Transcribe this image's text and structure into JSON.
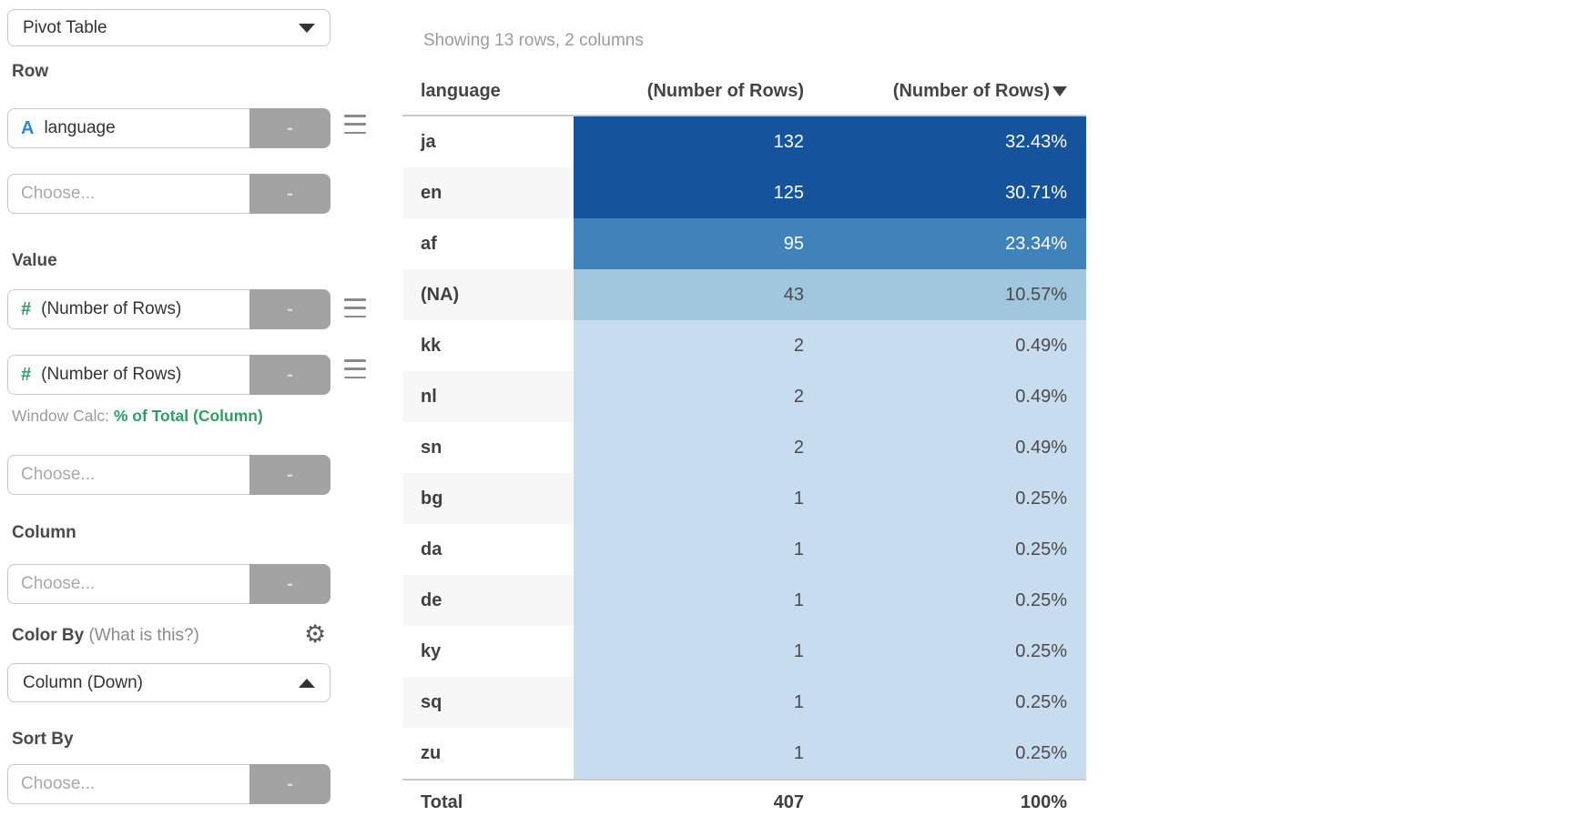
{
  "colors": {
    "accent_blue": "#2e86de",
    "accent_green": "#2f9e63",
    "cell_dark": "#15549c",
    "cell_medium": "#3f83ba",
    "cell_medium_light": "#a0c7de",
    "cell_light": "#c7dcee"
  },
  "sidebar": {
    "type_selector": {
      "value": "Pivot Table"
    },
    "row_section": {
      "label": "Row",
      "field": {
        "type_icon": "A",
        "value": "language",
        "remove_label": "-"
      },
      "empty_field": {
        "placeholder": "Choose...",
        "remove_label": "-"
      }
    },
    "value_section": {
      "label": "Value",
      "field1": {
        "type_icon": "#",
        "value": "(Number of Rows)",
        "remove_label": "-"
      },
      "field2": {
        "type_icon": "#",
        "value": "(Number of Rows)",
        "remove_label": "-",
        "window_calc_prefix": "Window Calc: ",
        "window_calc_value": "% of Total (Column)"
      },
      "empty_field": {
        "placeholder": "Choose...",
        "remove_label": "-"
      }
    },
    "column_section": {
      "label": "Column",
      "empty_field": {
        "placeholder": "Choose...",
        "remove_label": "-"
      }
    },
    "color_by_section": {
      "label": "Color By",
      "hint": "(What is this?)",
      "selector_value": "Column (Down)"
    },
    "sort_by_section": {
      "label": "Sort By",
      "empty_field": {
        "placeholder": "Choose...",
        "remove_label": "-"
      }
    }
  },
  "main": {
    "status": "Showing 13 rows, 2 columns",
    "table": {
      "columns": [
        "language",
        "(Number of Rows)",
        "(Number of Rows)"
      ],
      "sorted_column": "(Number of Rows)",
      "sort_direction": "desc",
      "rows": [
        {
          "language": "ja",
          "count": "132",
          "percent": "32.43%",
          "shade": "dark"
        },
        {
          "language": "en",
          "count": "125",
          "percent": "30.71%",
          "shade": "dark"
        },
        {
          "language": "af",
          "count": "95",
          "percent": "23.34%",
          "shade": "medium"
        },
        {
          "language": "(NA)",
          "count": "43",
          "percent": "10.57%",
          "shade": "medium-light"
        },
        {
          "language": "kk",
          "count": "2",
          "percent": "0.49%",
          "shade": "light"
        },
        {
          "language": "nl",
          "count": "2",
          "percent": "0.49%",
          "shade": "light"
        },
        {
          "language": "sn",
          "count": "2",
          "percent": "0.49%",
          "shade": "light"
        },
        {
          "language": "bg",
          "count": "1",
          "percent": "0.25%",
          "shade": "light"
        },
        {
          "language": "da",
          "count": "1",
          "percent": "0.25%",
          "shade": "light"
        },
        {
          "language": "de",
          "count": "1",
          "percent": "0.25%",
          "shade": "light"
        },
        {
          "language": "ky",
          "count": "1",
          "percent": "0.25%",
          "shade": "light"
        },
        {
          "language": "sq",
          "count": "1",
          "percent": "0.25%",
          "shade": "light"
        },
        {
          "language": "zu",
          "count": "1",
          "percent": "0.25%",
          "shade": "light"
        }
      ],
      "total": {
        "label": "Total",
        "count": "407",
        "percent": "100%"
      }
    }
  }
}
